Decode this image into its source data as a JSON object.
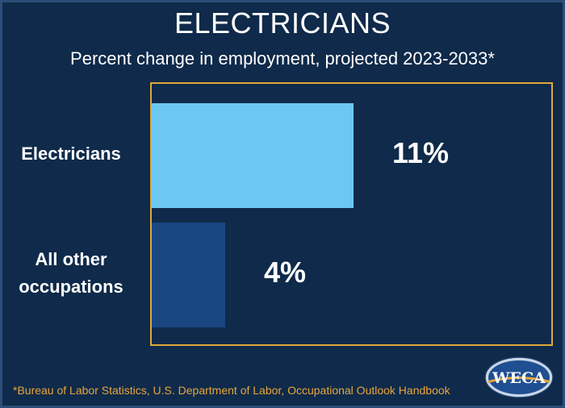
{
  "chart_data": {
    "type": "bar",
    "orientation": "horizontal",
    "title": "ELECTRICIANS",
    "subtitle": "Percent change in employment, projected 2023-2033*",
    "categories": [
      "Electricians",
      "All other occupations"
    ],
    "category_lines": [
      [
        "Electricians"
      ],
      [
        "All other",
        "occupations"
      ]
    ],
    "values": [
      11,
      4
    ],
    "value_labels": [
      "11%",
      "4%"
    ],
    "colors": [
      "#6cc8f2",
      "#1a4682"
    ],
    "xlim": [
      0,
      22
    ],
    "grid": false
  },
  "footnote": "*Bureau of Labor Statistics, U.S. Department of Labor, Occupational Outlook Handbook",
  "logo": {
    "text": "WECA"
  },
  "colors": {
    "background": "#0f2a4a",
    "frame_border": "#e0a83a",
    "footnote": "#e8a63c",
    "text": "#ffffff"
  }
}
